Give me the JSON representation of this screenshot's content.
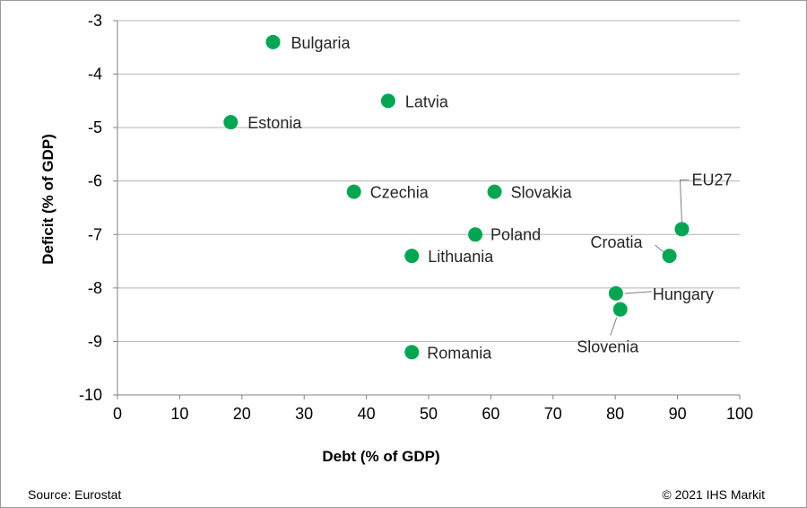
{
  "chart_data": {
    "type": "scatter",
    "title": "",
    "xlabel": "Debt (% of GDP)",
    "ylabel": "Deficit (% of GDP)",
    "xlim": [
      0,
      100
    ],
    "ylim": [
      -10,
      -3
    ],
    "x_ticks": [
      "0",
      "10",
      "20",
      "30",
      "40",
      "50",
      "60",
      "70",
      "80",
      "90",
      "100"
    ],
    "y_ticks": [
      "-3",
      "-4",
      "-5",
      "-6",
      "-7",
      "-8",
      "-9",
      "-10"
    ],
    "grid": "horizontal",
    "marker_color": "#00a651",
    "points": [
      {
        "label": "Bulgaria",
        "x": 25,
        "y": -3.4
      },
      {
        "label": "Latvia",
        "x": 43.5,
        "y": -4.5
      },
      {
        "label": "Estonia",
        "x": 18.2,
        "y": -4.9
      },
      {
        "label": "Czechia",
        "x": 38,
        "y": -6.2
      },
      {
        "label": "Slovakia",
        "x": 60.6,
        "y": -6.2
      },
      {
        "label": "Poland",
        "x": 57.5,
        "y": -7.0
      },
      {
        "label": "Lithuania",
        "x": 47.3,
        "y": -7.4
      },
      {
        "label": "Romania",
        "x": 47.3,
        "y": -9.2
      },
      {
        "label": "EU27",
        "x": 90.7,
        "y": -6.9
      },
      {
        "label": "Croatia",
        "x": 88.7,
        "y": -7.4
      },
      {
        "label": "Hungary",
        "x": 80.1,
        "y": -8.1
      },
      {
        "label": "Slovenia",
        "x": 80.8,
        "y": -8.4
      }
    ]
  },
  "footer": {
    "source": "Source: Eurostat",
    "copyright": "© 2021 IHS Markit"
  }
}
